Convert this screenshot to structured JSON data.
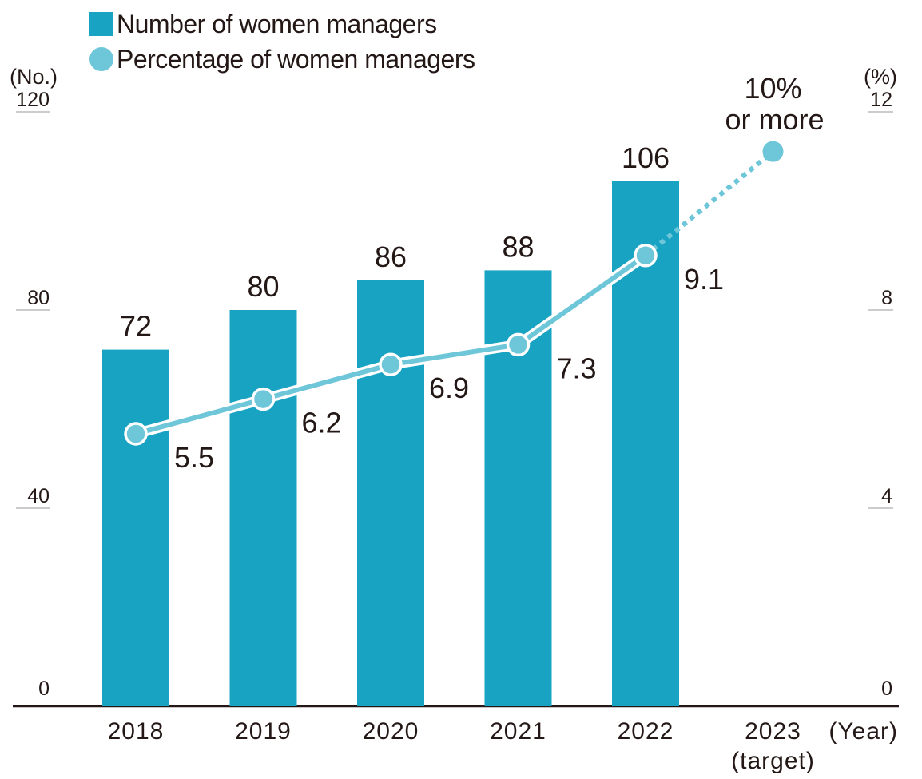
{
  "chart_data": {
    "type": "bar+line",
    "categories": [
      "2018",
      "2019",
      "2020",
      "2021",
      "2022",
      "2023"
    ],
    "category_sublabels": [
      "",
      "",
      "",
      "",
      "",
      "(target)"
    ],
    "xlabel": "(Year)",
    "series": [
      {
        "name": "Number of women managers",
        "type": "bar",
        "axis": "left",
        "values": [
          72,
          80,
          86,
          88,
          106,
          null
        ],
        "labels": [
          "72",
          "80",
          "86",
          "88",
          "106",
          ""
        ],
        "color": "#19a3c2"
      },
      {
        "name": "Percentage of women managers",
        "type": "line",
        "axis": "right",
        "values": [
          5.5,
          6.2,
          6.9,
          7.3,
          9.1,
          11.2
        ],
        "labels": [
          "5.5",
          "6.2",
          "6.9",
          "7.3",
          "9.1",
          ""
        ],
        "target_label": [
          "10%",
          "or more"
        ],
        "color": "#6ec6d9"
      }
    ],
    "y_left": {
      "label": "(No.)",
      "ylim": [
        0,
        120
      ],
      "ticks": [
        0,
        40,
        80,
        120
      ]
    },
    "y_right": {
      "label": "(%)",
      "ylim": [
        0,
        12
      ],
      "ticks": [
        0,
        4,
        8,
        12
      ]
    },
    "legend": "top-left",
    "grid": false
  }
}
